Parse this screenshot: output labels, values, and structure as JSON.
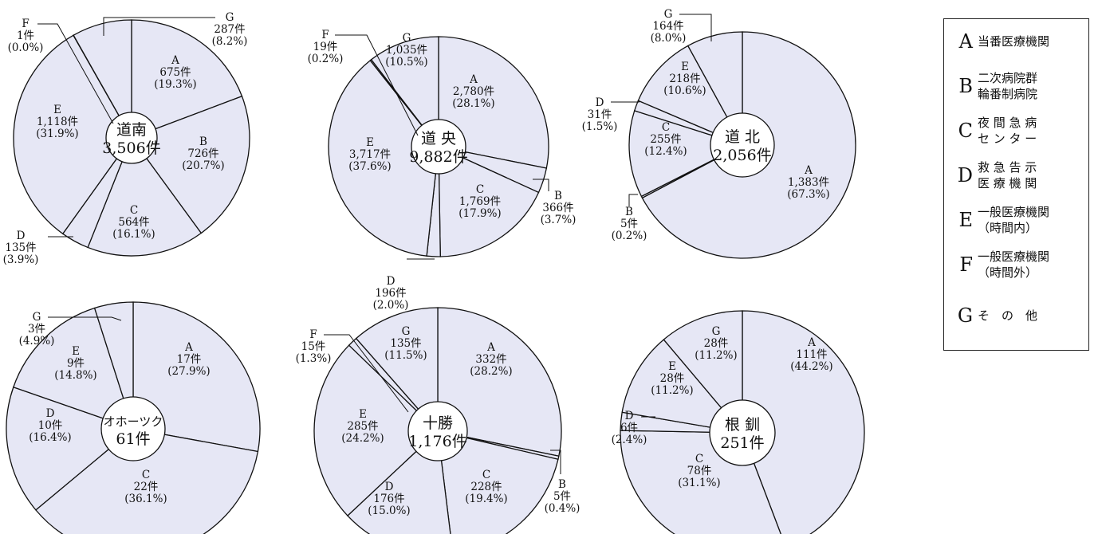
{
  "legend": {
    "items": [
      {
        "key": "A",
        "line1": "当番医療機関",
        "line2": ""
      },
      {
        "key": "B",
        "line1": "二次病院群",
        "line2": "輪番制病院"
      },
      {
        "key": "C",
        "line1": "夜 間 急 病",
        "line2": "セ ン タ ー"
      },
      {
        "key": "D",
        "line1": "救 急 告 示",
        "line2": "医 療 機 関"
      },
      {
        "key": "E",
        "line1": "一般医療機関",
        "line2": "（時間内）"
      },
      {
        "key": "F",
        "line1": "一般医療機関",
        "line2": "（時間外）"
      },
      {
        "key": "G",
        "line1": "そ　の　他",
        "line2": ""
      }
    ]
  },
  "chart_data": [
    {
      "type": "pie",
      "region": "道南",
      "total": "3,506件",
      "slices": [
        {
          "cat": "A",
          "count": 675,
          "label": "675件",
          "pct": "(19.3%)",
          "value": 19.3
        },
        {
          "cat": "B",
          "count": 726,
          "label": "726件",
          "pct": "(20.7%)",
          "value": 20.7
        },
        {
          "cat": "C",
          "count": 564,
          "label": "564件",
          "pct": "(16.1%)",
          "value": 16.1
        },
        {
          "cat": "D",
          "count": 135,
          "label": "135件",
          "pct": "(3.9%)",
          "value": 3.9
        },
        {
          "cat": "E",
          "count": 1118,
          "label": "1,118件",
          "pct": "(31.9%)",
          "value": 31.9
        },
        {
          "cat": "F",
          "count": 1,
          "label": "1件",
          "pct": "(0.0%)",
          "value": 0.0
        },
        {
          "cat": "G",
          "count": 287,
          "label": "287件",
          "pct": "(8.2%)",
          "value": 8.2
        }
      ]
    },
    {
      "type": "pie",
      "region": "道 央",
      "total": "9,882件",
      "slices": [
        {
          "cat": "A",
          "count": 2780,
          "label": "2,780件",
          "pct": "(28.1%)",
          "value": 28.1
        },
        {
          "cat": "B",
          "count": 366,
          "label": "366件",
          "pct": "(3.7%)",
          "value": 3.7
        },
        {
          "cat": "C",
          "count": 1769,
          "label": "1,769件",
          "pct": "(17.9%)",
          "value": 17.9
        },
        {
          "cat": "D",
          "count": 196,
          "label": "196件",
          "pct": "(2.0%)",
          "value": 2.0
        },
        {
          "cat": "E",
          "count": 3717,
          "label": "3,717件",
          "pct": "(37.6%)",
          "value": 37.6
        },
        {
          "cat": "F",
          "count": 19,
          "label": "19件",
          "pct": "(0.2%)",
          "value": 0.2
        },
        {
          "cat": "G",
          "count": 1035,
          "label": "1,035件",
          "pct": "(10.5%)",
          "value": 10.5
        }
      ]
    },
    {
      "type": "pie",
      "region": "道 北",
      "total": "2,056件",
      "slices": [
        {
          "cat": "A",
          "count": 1383,
          "label": "1,383件",
          "pct": "(67.3%)",
          "value": 67.3
        },
        {
          "cat": "B",
          "count": 5,
          "label": "5件",
          "pct": "(0.2%)",
          "value": 0.2
        },
        {
          "cat": "C",
          "count": 255,
          "label": "255件",
          "pct": "(12.4%)",
          "value": 12.4
        },
        {
          "cat": "D",
          "count": 31,
          "label": "31件",
          "pct": "(1.5%)",
          "value": 1.5
        },
        {
          "cat": "E",
          "count": 218,
          "label": "218件",
          "pct": "(10.6%)",
          "value": 10.6
        },
        {
          "cat": "G",
          "count": 164,
          "label": "164件",
          "pct": "(8.0%)",
          "value": 8.0
        }
      ]
    },
    {
      "type": "pie",
      "region": "オホーツク",
      "total": "61件",
      "slices": [
        {
          "cat": "A",
          "count": 17,
          "label": "17件",
          "pct": "(27.9%)",
          "value": 27.9
        },
        {
          "cat": "C",
          "count": 22,
          "label": "22件",
          "pct": "(36.1%)",
          "value": 36.1
        },
        {
          "cat": "D",
          "count": 10,
          "label": "10件",
          "pct": "(16.4%)",
          "value": 16.4
        },
        {
          "cat": "E",
          "count": 9,
          "label": "9件",
          "pct": "(14.8%)",
          "value": 14.8
        },
        {
          "cat": "G",
          "count": 3,
          "label": "3件",
          "pct": "(4.9%)",
          "value": 4.9
        }
      ]
    },
    {
      "type": "pie",
      "region": "十勝",
      "total": "1,176件",
      "slices": [
        {
          "cat": "A",
          "count": 332,
          "label": "332件",
          "pct": "(28.2%)",
          "value": 28.2
        },
        {
          "cat": "B",
          "count": 5,
          "label": "5件",
          "pct": "(0.4%)",
          "value": 0.4
        },
        {
          "cat": "C",
          "count": 228,
          "label": "228件",
          "pct": "(19.4%)",
          "value": 19.4
        },
        {
          "cat": "D",
          "count": 176,
          "label": "176件",
          "pct": "(15.0%)",
          "value": 15.0
        },
        {
          "cat": "E",
          "count": 285,
          "label": "285件",
          "pct": "(24.2%)",
          "value": 24.2
        },
        {
          "cat": "F",
          "count": 15,
          "label": "15件",
          "pct": "(1.3%)",
          "value": 1.3
        },
        {
          "cat": "G",
          "count": 135,
          "label": "135件",
          "pct": "(11.5%)",
          "value": 11.5
        }
      ]
    },
    {
      "type": "pie",
      "region": "根 釧",
      "total": "251件",
      "slices": [
        {
          "cat": "A",
          "count": 111,
          "label": "111件",
          "pct": "(44.2%)",
          "value": 44.2
        },
        {
          "cat": "C",
          "count": 78,
          "label": "78件",
          "pct": "(31.1%)",
          "value": 31.1
        },
        {
          "cat": "D",
          "count": 6,
          "label": "6件",
          "pct": "(2.4%)",
          "value": 2.4
        },
        {
          "cat": "E",
          "count": 28,
          "label": "28件",
          "pct": "(11.2%)",
          "value": 11.2
        },
        {
          "cat": "G",
          "count": 28,
          "label": "28件",
          "pct": "(11.2%)",
          "value": 11.2
        }
      ]
    }
  ]
}
